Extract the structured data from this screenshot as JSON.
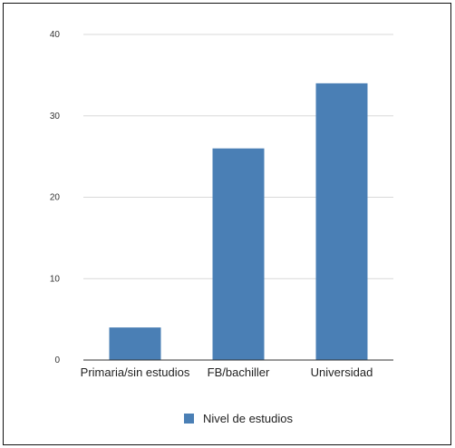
{
  "chart_data": {
    "type": "bar",
    "categories": [
      "Primaria/sin estudios",
      "FB/bachiller",
      "Universidad"
    ],
    "series": [
      {
        "name": "Nivel de estudios",
        "values": [
          4,
          26,
          34
        ],
        "color": "#4a7fb5"
      }
    ],
    "ylim": [
      0,
      40
    ],
    "yticks": [
      "0",
      "10",
      "20",
      "30",
      "40"
    ],
    "grid": true,
    "legend": "bottom"
  }
}
